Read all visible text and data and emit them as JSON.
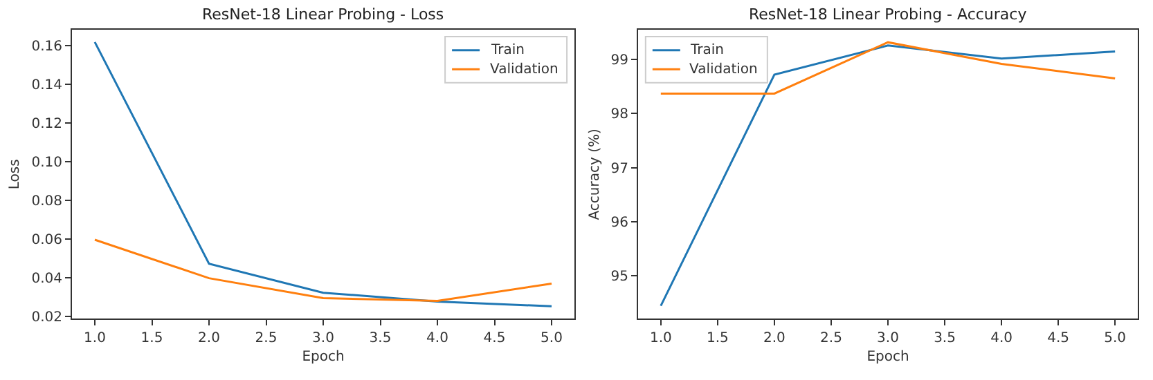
{
  "chart_data": [
    {
      "type": "line",
      "title": "ResNet-18 Linear Probing - Loss",
      "xlabel": "Epoch",
      "ylabel": "Loss",
      "x": [
        1,
        2,
        3,
        4,
        5
      ],
      "series": [
        {
          "name": "Train",
          "color": "#1f77b4",
          "values": [
            0.1617,
            0.0471,
            0.0321,
            0.0275,
            0.0251
          ]
        },
        {
          "name": "Validation",
          "color": "#ff7f0e",
          "values": [
            0.0595,
            0.0396,
            0.0293,
            0.0279,
            0.0368
          ]
        }
      ],
      "xlim": [
        0.8,
        5.2
      ],
      "ylim": [
        0.0186,
        0.168
      ],
      "xticks": [
        {
          "value": 1,
          "label": "1.0"
        },
        {
          "value": 1.5,
          "label": "1.5"
        },
        {
          "value": 2,
          "label": "2.0"
        },
        {
          "value": 2.5,
          "label": "2.5"
        },
        {
          "value": 3,
          "label": "3.0"
        },
        {
          "value": 3.5,
          "label": "3.5"
        },
        {
          "value": 4,
          "label": "4.0"
        },
        {
          "value": 4.5,
          "label": "4.5"
        },
        {
          "value": 5,
          "label": "5.0"
        }
      ],
      "yticks": [
        0.02,
        0.04,
        0.06,
        0.08,
        {
          "value": 0.1,
          "label": "0.10"
        },
        0.12,
        0.14,
        0.16
      ],
      "legend": "top right",
      "line_style": "solid"
    },
    {
      "type": "line",
      "title": "ResNet-18 Linear Probing - Accuracy",
      "xlabel": "Epoch",
      "ylabel": "Accuracy (%)",
      "x": [
        1,
        2,
        3,
        4,
        5
      ],
      "series": [
        {
          "name": "Train",
          "color": "#1f77b4",
          "values": [
            94.44,
            98.72,
            99.26,
            99.02,
            99.15
          ]
        },
        {
          "name": "Validation",
          "color": "#ff7f0e",
          "values": [
            98.37,
            98.37,
            99.32,
            98.92,
            98.65
          ]
        }
      ],
      "xlim": [
        0.8,
        5.2
      ],
      "ylim": [
        94.2,
        99.55
      ],
      "xticks": [
        {
          "value": 1,
          "label": "1.0"
        },
        {
          "value": 1.5,
          "label": "1.5"
        },
        {
          "value": 2,
          "label": "2.0"
        },
        {
          "value": 2.5,
          "label": "2.5"
        },
        {
          "value": 3,
          "label": "3.0"
        },
        {
          "value": 3.5,
          "label": "3.5"
        },
        {
          "value": 4,
          "label": "4.0"
        },
        {
          "value": 4.5,
          "label": "4.5"
        },
        {
          "value": 5,
          "label": "5.0"
        }
      ],
      "yticks": [
        95,
        96,
        97,
        98,
        99
      ],
      "legend": "top left",
      "line_style": "solid"
    }
  ]
}
